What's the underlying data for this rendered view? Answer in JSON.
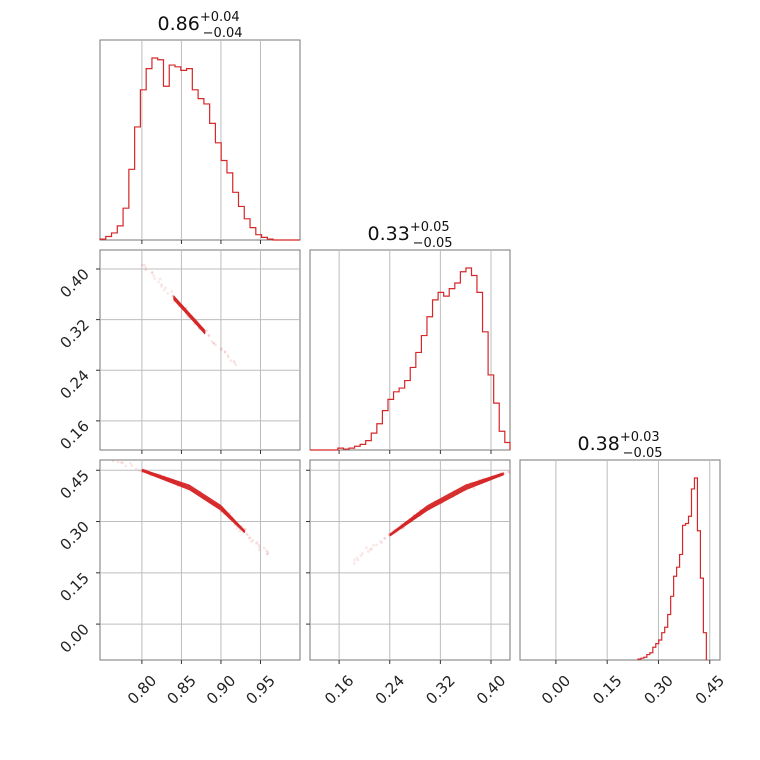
{
  "chart_data": {
    "type": "corner",
    "color": "#d62728",
    "grid": true,
    "parameters": [
      {
        "median": "0.86",
        "plus": "+0.04",
        "minus": "−0.04",
        "range": [
          0.747,
          1.0
        ]
      },
      {
        "median": "0.33",
        "plus": "+0.05",
        "minus": "−0.05",
        "range": [
          0.114,
          0.43
        ]
      },
      {
        "median": "0.38",
        "plus": "+0.03",
        "minus": "−0.05",
        "range": [
          -0.105,
          0.48
        ]
      }
    ],
    "ticks": [
      [
        0.8,
        0.85,
        0.9,
        0.95
      ],
      [
        0.16,
        0.24,
        0.32,
        0.4
      ],
      [
        0.0,
        0.15,
        0.3,
        0.45
      ]
    ],
    "tick_labels": [
      [
        "0.80",
        "0.85",
        "0.90",
        "0.95"
      ],
      [
        "0.16",
        "0.24",
        "0.32",
        "0.40"
      ],
      [
        "0.00",
        "0.15",
        "0.30",
        "0.45"
      ]
    ],
    "histograms": [
      {
        "bins": [
          0.747,
          0.7543,
          0.7616,
          0.7689,
          0.7762,
          0.7835,
          0.7908,
          0.7981,
          0.8054,
          0.8127,
          0.82,
          0.8273,
          0.8346,
          0.8419,
          0.8492,
          0.8565,
          0.8638,
          0.8711,
          0.8784,
          0.8857,
          0.893,
          0.9003,
          0.9076,
          0.9149,
          0.9222,
          0.9295,
          0.9368,
          0.9441,
          0.9514,
          0.9587,
          0.966,
          0.9733,
          0.9806,
          0.9879,
          0.9952,
          1.0
        ],
        "counts": [
          0.5,
          2,
          4,
          8,
          18,
          40,
          64,
          85,
          97,
          103,
          102,
          87,
          99,
          98,
          96,
          97,
          85,
          80,
          77,
          66,
          55,
          45,
          38,
          27,
          19,
          12,
          7,
          3,
          1.5,
          0.5,
          0,
          0,
          0,
          0,
          0
        ]
      },
      {
        "bins": [
          0.114,
          0.1228,
          0.1316,
          0.1404,
          0.1492,
          0.158,
          0.1668,
          0.1756,
          0.1844,
          0.1932,
          0.202,
          0.2108,
          0.2196,
          0.2284,
          0.2372,
          0.246,
          0.2548,
          0.2636,
          0.2724,
          0.2812,
          0.29,
          0.2988,
          0.3076,
          0.3164,
          0.3252,
          0.334,
          0.3428,
          0.3516,
          0.3604,
          0.3692,
          0.3778,
          0.3866,
          0.3954,
          0.4042,
          0.413,
          0.4218,
          0.43
        ],
        "counts": [
          0,
          0,
          0,
          0,
          0,
          1,
          0.5,
          1,
          2,
          3,
          5,
          9,
          14,
          21,
          27,
          31,
          33,
          37,
          44,
          52,
          61,
          71,
          80,
          84,
          82,
          86,
          89,
          95,
          97,
          93,
          84,
          63,
          40,
          25,
          10,
          4
        ]
      },
      {
        "bins": [
          0.24,
          0.2487,
          0.2574,
          0.2661,
          0.2748,
          0.2835,
          0.2922,
          0.3009,
          0.3096,
          0.3183,
          0.327,
          0.3357,
          0.3444,
          0.3531,
          0.3618,
          0.3705,
          0.3792,
          0.3879,
          0.3966,
          0.4053,
          0.414,
          0.4227,
          0.4314,
          0.4401
        ],
        "counts": [
          0.5,
          1,
          1.5,
          3,
          4,
          7,
          9,
          11,
          15,
          18,
          25,
          35,
          46,
          51,
          58,
          74,
          75,
          79,
          94,
          100,
          71,
          45,
          15
        ]
      }
    ],
    "correlations": [
      {
        "x": 0,
        "y": 1,
        "axis": "diag",
        "pts": [
          [
            0.84,
            0.355
          ],
          [
            0.88,
            0.3
          ]
        ],
        "sigma_minor": 0.006,
        "spread": "thin"
      },
      {
        "x": 0,
        "y": 2,
        "axis": "curve",
        "pts": [
          [
            0.8,
            0.45
          ],
          [
            0.86,
            0.4
          ],
          [
            0.9,
            0.34
          ],
          [
            0.93,
            0.27
          ]
        ]
      },
      {
        "x": 1,
        "y": 2,
        "axis": "curve",
        "pts": [
          [
            0.24,
            0.26
          ],
          [
            0.3,
            0.34
          ],
          [
            0.36,
            0.4
          ],
          [
            0.42,
            0.44
          ]
        ]
      }
    ]
  }
}
